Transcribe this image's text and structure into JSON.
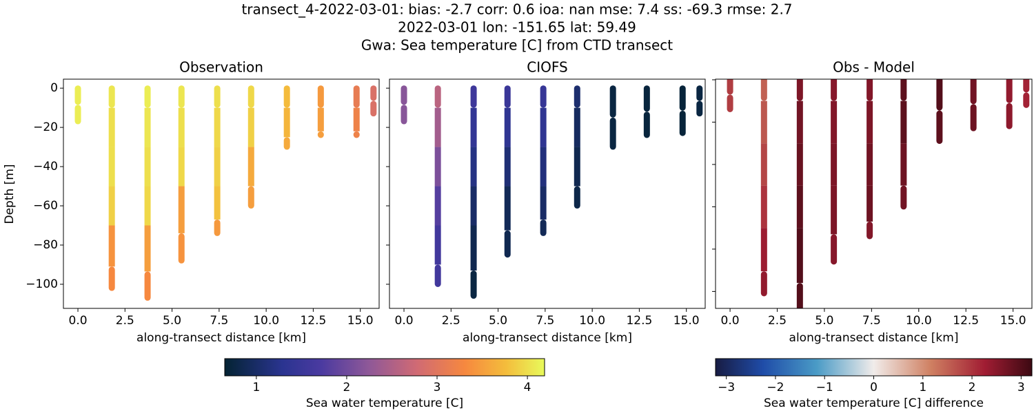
{
  "suptitle": [
    "transect_4-2022-03-01: bias: -2.7  corr: 0.6  ioa: nan  mse: 7.4  ss: -69.3  rmse: 2.7",
    "2022-03-01 lon: -151.65 lat: 59.49",
    "Gwa: Sea temperature [C] from CTD transect"
  ],
  "colorbars": [
    {
      "label": "Sea water temperature [C]",
      "colormap": "thermal",
      "lim": [
        0.65,
        4.19
      ],
      "ticks": [
        1,
        2,
        3,
        4
      ]
    },
    {
      "label": "Sea water temperature [C] difference",
      "colormap": "balance",
      "lim": [
        -3.22,
        3.22
      ],
      "ticks": [
        {
          "value": -3,
          "label": "−3"
        },
        {
          "value": -2,
          "label": "−2"
        },
        {
          "value": -1,
          "label": "−1"
        },
        0,
        1,
        2,
        3
      ]
    }
  ],
  "chart_data": [
    {
      "type": "profile",
      "title": "Observation",
      "xlabel": "along-transect distance [km]",
      "ylabel": "Depth [m]",
      "colorbar": 0,
      "ytick_labels": true,
      "xlim": [
        -0.77,
        16.0
      ],
      "xticks": [
        {
          "value": 0,
          "label": "0.0"
        },
        2.5,
        {
          "value": 5,
          "label": "5.0"
        },
        7.5,
        {
          "value": 10,
          "label": "10.0"
        },
        12.5,
        {
          "value": 15,
          "label": "15.0"
        }
      ],
      "ylim": [
        -112.3,
        4.6
      ],
      "yticks": [
        0,
        {
          "value": -20,
          "label": "−20"
        },
        {
          "value": -40,
          "label": "−40"
        },
        {
          "value": -60,
          "label": "−60"
        },
        {
          "value": -80,
          "label": "−80"
        },
        {
          "value": -100,
          "label": "−100"
        }
      ],
      "casts": [
        {
          "x": 0,
          "depth": [
            0,
            -17
          ],
          "values": [
            4.1,
            4.1
          ]
        },
        {
          "x": 1.8,
          "depth": [
            0,
            -20,
            -40,
            -60,
            -80,
            -102
          ],
          "values": [
            4.05,
            4.0,
            4.0,
            3.9,
            3.4,
            3.3
          ]
        },
        {
          "x": 3.7,
          "depth": [
            0,
            -20,
            -40,
            -60,
            -80,
            -107
          ],
          "values": [
            4.1,
            4.05,
            4.0,
            3.95,
            3.5,
            3.3
          ]
        },
        {
          "x": 5.5,
          "depth": [
            0,
            -20,
            -40,
            -60,
            -88
          ],
          "values": [
            4.05,
            4.0,
            3.95,
            3.5,
            3.4
          ]
        },
        {
          "x": 7.4,
          "depth": [
            0,
            -20,
            -40,
            -60,
            -74
          ],
          "values": [
            4.0,
            3.95,
            3.9,
            3.8,
            3.45
          ]
        },
        {
          "x": 9.2,
          "depth": [
            0,
            -20,
            -40,
            -60
          ],
          "values": [
            3.95,
            3.9,
            3.6,
            3.5
          ]
        },
        {
          "x": 11.1,
          "depth": [
            0,
            -20,
            -30
          ],
          "values": [
            3.75,
            3.7,
            3.6
          ]
        },
        {
          "x": 12.9,
          "depth": [
            0,
            -20,
            -24
          ],
          "values": [
            3.45,
            3.5,
            3.5
          ]
        },
        {
          "x": 14.8,
          "depth": [
            0,
            -20,
            -24
          ],
          "values": [
            3.1,
            3.2,
            3.2
          ]
        },
        {
          "x": 15.7,
          "depth": [
            0,
            -13
          ],
          "values": [
            2.9,
            2.9
          ]
        }
      ]
    },
    {
      "type": "profile",
      "title": "CIOFS",
      "xlabel": "along-transect distance [km]",
      "colorbar": 0,
      "ytick_labels": false,
      "xlim": [
        -0.77,
        16.0
      ],
      "xticks": [
        {
          "value": 0,
          "label": "0.0"
        },
        2.5,
        {
          "value": 5,
          "label": "5.0"
        },
        7.5,
        {
          "value": 10,
          "label": "10.0"
        },
        12.5,
        {
          "value": 15,
          "label": "15.0"
        }
      ],
      "ylim": [
        -112.3,
        4.6
      ],
      "yticks": [
        0,
        -20,
        -40,
        -60,
        -80,
        -100
      ],
      "casts": [
        {
          "x": 0,
          "depth": [
            0,
            -17
          ],
          "values": [
            2.2,
            2.2
          ]
        },
        {
          "x": 1.8,
          "depth": [
            0,
            -20,
            -40,
            -60,
            -80,
            -100
          ],
          "values": [
            2.6,
            2.4,
            2.1,
            1.8,
            1.6,
            1.6
          ]
        },
        {
          "x": 3.7,
          "depth": [
            0,
            -20,
            -40,
            -60,
            -80,
            -106
          ],
          "values": [
            1.55,
            1.4,
            1.2,
            1.0,
            0.85,
            0.75
          ]
        },
        {
          "x": 5.5,
          "depth": [
            0,
            -20,
            -40,
            -60,
            -85
          ],
          "values": [
            1.5,
            1.35,
            1.1,
            0.9,
            0.85
          ]
        },
        {
          "x": 7.4,
          "depth": [
            0,
            -20,
            -40,
            -60,
            -74
          ],
          "values": [
            1.45,
            1.35,
            1.15,
            1.0,
            0.9
          ]
        },
        {
          "x": 9.2,
          "depth": [
            0,
            -20,
            -40,
            -60
          ],
          "values": [
            1.05,
            0.95,
            0.85,
            0.8
          ]
        },
        {
          "x": 11.1,
          "depth": [
            0,
            -30
          ],
          "values": [
            0.75,
            0.75
          ]
        },
        {
          "x": 12.9,
          "depth": [
            0,
            -24
          ],
          "values": [
            0.72,
            0.72
          ]
        },
        {
          "x": 14.8,
          "depth": [
            0,
            -23
          ],
          "values": [
            0.7,
            0.7
          ]
        },
        {
          "x": 15.7,
          "depth": [
            0,
            -13
          ],
          "values": [
            0.75,
            0.75
          ]
        }
      ]
    },
    {
      "type": "profile",
      "title": "Obs - Model",
      "xlabel": "along-transect distance [km]",
      "colorbar": 1,
      "ytick_labels": false,
      "xlim": [
        -0.77,
        16.0
      ],
      "xticks": [
        {
          "value": 0,
          "label": "0.0"
        },
        2.5,
        {
          "value": 5,
          "label": "5.0"
        },
        7.5,
        {
          "value": 10,
          "label": "10.0"
        },
        12.5,
        {
          "value": 15,
          "label": "15.0"
        }
      ],
      "ylim": [
        -108,
        0.3
      ],
      "yticks": [
        0,
        -20,
        -40,
        -60,
        -80,
        -100
      ],
      "casts": [
        {
          "x": 0,
          "depth": [
            0,
            -14
          ],
          "values": [
            1.9,
            1.9
          ]
        },
        {
          "x": 1.8,
          "depth": [
            0,
            -20,
            -40,
            -60,
            -80,
            -101
          ],
          "values": [
            1.5,
            1.6,
            1.8,
            2.0,
            2.3,
            2.4
          ]
        },
        {
          "x": 3.7,
          "depth": [
            0,
            -20,
            -40,
            -60,
            -80,
            -112
          ],
          "values": [
            2.6,
            2.7,
            2.8,
            2.9,
            3.0,
            3.0
          ]
        },
        {
          "x": 5.5,
          "depth": [
            0,
            -20,
            -40,
            -60,
            -86
          ],
          "values": [
            2.5,
            2.55,
            2.6,
            2.6,
            2.5
          ]
        },
        {
          "x": 7.4,
          "depth": [
            0,
            -20,
            -40,
            -60,
            -74
          ],
          "values": [
            2.55,
            2.6,
            2.7,
            2.75,
            2.55
          ]
        },
        {
          "x": 9.2,
          "depth": [
            0,
            -20,
            -40,
            -60
          ],
          "values": [
            2.9,
            2.9,
            2.75,
            2.7
          ]
        },
        {
          "x": 11.1,
          "depth": [
            0,
            -29
          ],
          "values": [
            3.0,
            2.9
          ]
        },
        {
          "x": 12.9,
          "depth": [
            0,
            -23
          ],
          "values": [
            2.7,
            2.75
          ]
        },
        {
          "x": 14.8,
          "depth": [
            0,
            -22
          ],
          "values": [
            2.4,
            2.45
          ]
        },
        {
          "x": 15.7,
          "depth": [
            0,
            -12
          ],
          "values": [
            2.2,
            2.2
          ]
        }
      ]
    }
  ]
}
